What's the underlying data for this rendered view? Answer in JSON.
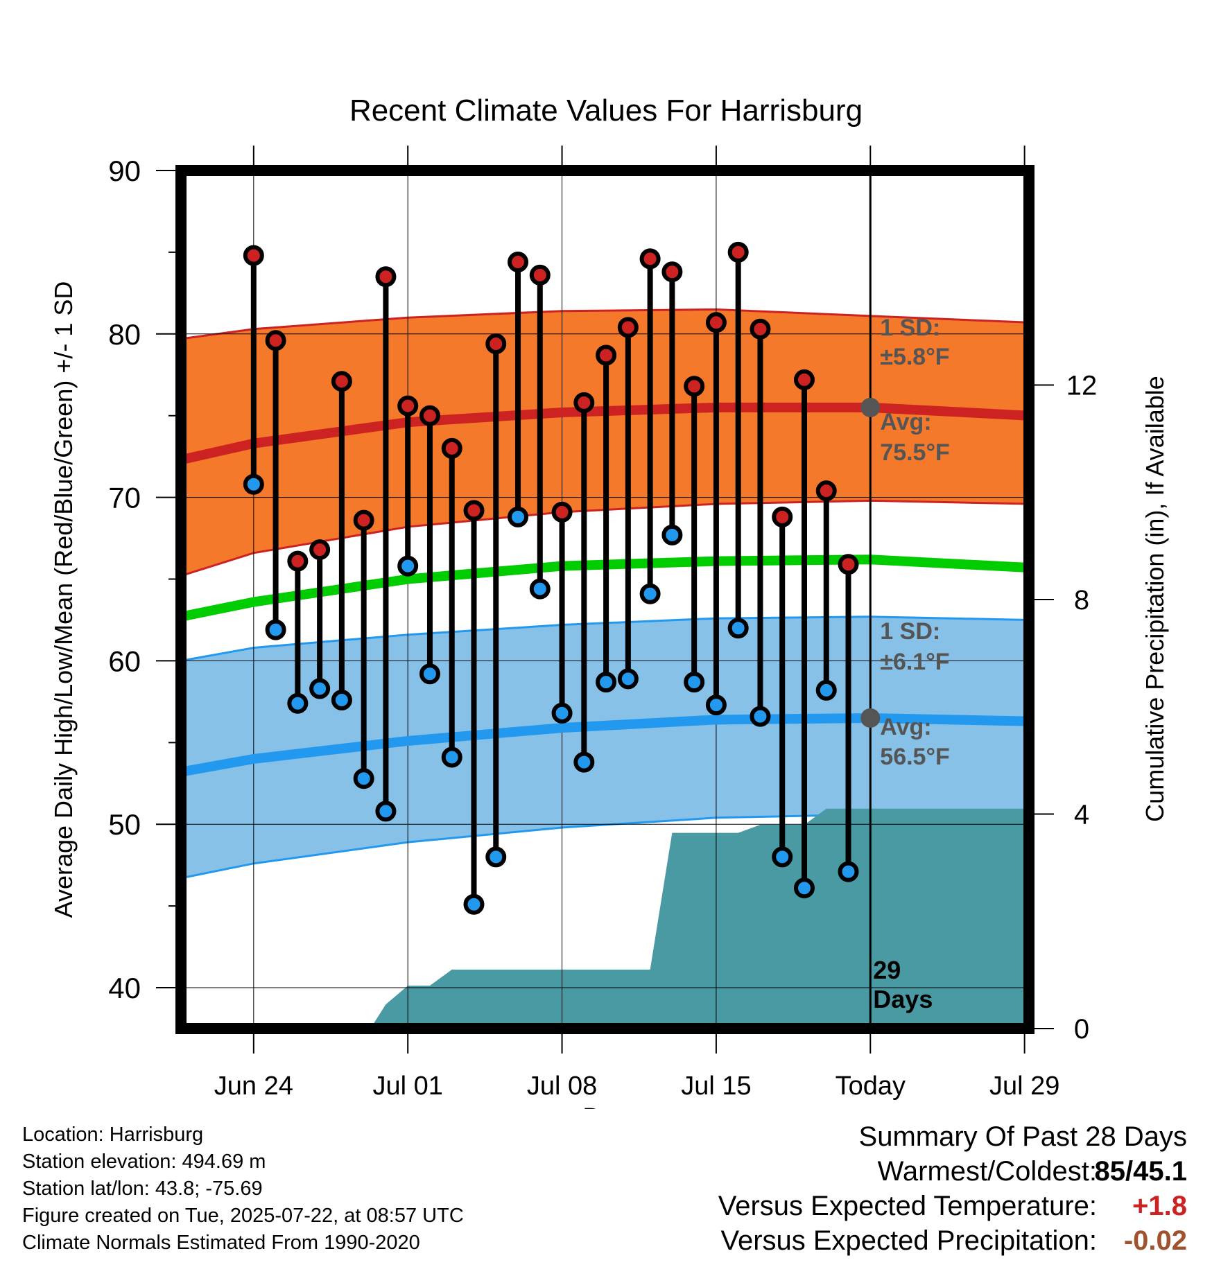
{
  "chart_data": {
    "type": "line",
    "title": "Recent Climate Values For Harrisburg",
    "xlabel": "Day",
    "ylabel_left": "Average Daily High/Low/Mean (Red/Blue/Green) +/- 1 SD",
    "ylabel_right": "Cumulative Precipitation (in), If Available",
    "ylim": [
      37.5,
      90
    ],
    "yticks": [
      "90",
      "80",
      "70",
      "60",
      "50",
      "40"
    ],
    "y2lim": [
      0,
      16
    ],
    "y2ticks": [
      "0",
      "4",
      "8",
      "12"
    ],
    "xlim": [
      -3.3,
      35.2
    ],
    "xticks": [
      {
        "label": "Jun 24",
        "day": 0
      },
      {
        "label": "Jul 01",
        "day": 7
      },
      {
        "label": "Jul 08",
        "day": 14
      },
      {
        "label": "Jul 15",
        "day": 21
      },
      {
        "label": "Today",
        "day": 28
      },
      {
        "label": "Jul 29",
        "day": 35
      }
    ],
    "today_day": 28,
    "grid": true,
    "colors": {
      "high": "#cc2222",
      "low": "#2299ee",
      "mean": "#00cc00",
      "high_band": "#f4792a",
      "low_band": "#87c1e8",
      "precip": "#4a9aa3",
      "marker_fill_high": "#cc2222",
      "marker_fill_low": "#2299ee",
      "avg_marker": "#555555"
    },
    "normals": {
      "days": [
        -3.3,
        0,
        7,
        14,
        21,
        28,
        35.2
      ],
      "high_avg": [
        72.3,
        73.3,
        74.6,
        75.2,
        75.5,
        75.5,
        75.0
      ],
      "high_upper": [
        79.7,
        80.3,
        81.0,
        81.4,
        81.5,
        81.1,
        80.7
      ],
      "high_lower": [
        65.2,
        66.6,
        68.2,
        69.1,
        69.6,
        69.8,
        69.6
      ],
      "mean_avg": [
        62.7,
        63.6,
        65.0,
        65.8,
        66.1,
        66.2,
        65.7
      ],
      "low_avg": [
        53.2,
        54.0,
        55.1,
        55.9,
        56.4,
        56.5,
        56.3
      ],
      "low_upper": [
        60.0,
        60.8,
        61.6,
        62.2,
        62.6,
        62.7,
        62.5
      ],
      "low_lower": [
        46.7,
        47.6,
        48.9,
        49.8,
        50.4,
        50.6,
        50.4
      ]
    },
    "series": [
      {
        "name": "High",
        "x": [
          0,
          1,
          2,
          3,
          4,
          5,
          6,
          7,
          8,
          9,
          10,
          11,
          12,
          13,
          14,
          15,
          16,
          17,
          18,
          19,
          20,
          21,
          22,
          23,
          24,
          25,
          26,
          27
        ],
        "values": [
          84.8,
          79.6,
          66.1,
          66.8,
          77.1,
          68.6,
          83.5,
          75.6,
          75.0,
          73.0,
          69.2,
          79.4,
          84.4,
          83.6,
          69.1,
          75.8,
          78.7,
          80.4,
          84.6,
          83.8,
          76.8,
          80.7,
          85.0,
          80.3,
          68.8,
          77.2,
          70.4,
          65.9
        ]
      },
      {
        "name": "Low",
        "x": [
          0,
          1,
          2,
          3,
          4,
          5,
          6,
          7,
          8,
          9,
          10,
          11,
          12,
          13,
          14,
          15,
          16,
          17,
          18,
          19,
          20,
          21,
          22,
          23,
          24,
          25,
          26,
          27
        ],
        "values": [
          70.8,
          61.9,
          57.4,
          58.3,
          57.6,
          52.8,
          50.8,
          65.8,
          59.2,
          54.1,
          45.1,
          48.0,
          68.8,
          64.4,
          56.8,
          53.8,
          58.7,
          58.9,
          64.1,
          67.7,
          58.7,
          57.3,
          62.0,
          56.6,
          48.0,
          46.1,
          58.2,
          47.1
        ]
      },
      {
        "name": "Cumulative Precipitation",
        "x": [
          5.3,
          6,
          7,
          8,
          9,
          10,
          11,
          12,
          13,
          14,
          15,
          16,
          17,
          18,
          19,
          20,
          21,
          22,
          23,
          24,
          25,
          26,
          27,
          28,
          35.2
        ],
        "values": [
          0,
          0.45,
          0.8,
          0.8,
          1.1,
          1.1,
          1.1,
          1.1,
          1.1,
          1.1,
          1.1,
          1.1,
          1.1,
          1.1,
          3.65,
          3.65,
          3.65,
          3.65,
          3.8,
          3.8,
          3.8,
          4.1,
          4.1,
          4.1,
          4.1
        ]
      }
    ],
    "annotations": {
      "high_sd_label": "1 SD:",
      "high_sd_value": "±5.8°F",
      "high_avg_label": "Avg:",
      "high_avg_value": "75.5°F",
      "low_sd_label": "1 SD:",
      "low_sd_value": "±6.1°F",
      "low_avg_label": "Avg:",
      "low_avg_value": "56.5°F",
      "days_count": "29",
      "days_word": "Days"
    }
  },
  "footer": {
    "location": "Location: Harrisburg",
    "elevation": "Station elevation: 494.69 m",
    "latlon": "Station lat/lon: 43.8; -75.69",
    "created": "Figure created on Tue, 2025-07-22, at 08:57 UTC",
    "normals": "Climate Normals Estimated From 1990-2020"
  },
  "summary": {
    "title": "Summary Of Past 28 Days",
    "warmest_coldest_label": "Warmest/Coldest:",
    "warmest_coldest_value": "85/45.1",
    "temp_label": "Versus Expected Temperature:",
    "temp_value": "+1.8",
    "temp_color": "#cc2222",
    "precip_label": "Versus Expected Precipitation:",
    "precip_value": "-0.02",
    "precip_color": "#a0522d"
  }
}
